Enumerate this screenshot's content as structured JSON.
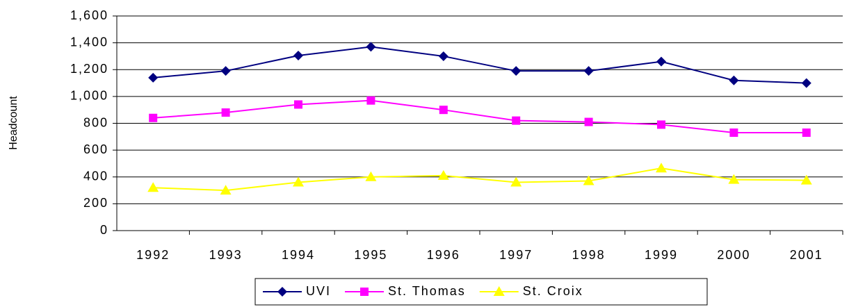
{
  "chart_data": {
    "type": "line",
    "y_label": "Headcount",
    "categories": [
      "1992",
      "1993",
      "1994",
      "1995",
      "1996",
      "1997",
      "1998",
      "1999",
      "2000",
      "2001"
    ],
    "series": [
      {
        "name": "UVI",
        "color": "#000080",
        "marker": "diamond",
        "values": [
          1140,
          1190,
          1305,
          1370,
          1300,
          1190,
          1190,
          1260,
          1120,
          1100
        ]
      },
      {
        "name": "St. Thomas",
        "color": "#ff00ff",
        "marker": "square",
        "values": [
          840,
          880,
          940,
          970,
          900,
          820,
          810,
          790,
          730,
          730
        ]
      },
      {
        "name": "St. Croix",
        "color": "#ffff00",
        "marker": "triangle",
        "values": [
          320,
          300,
          360,
          400,
          410,
          360,
          370,
          465,
          380,
          375
        ]
      }
    ],
    "ylim": [
      0,
      1600
    ],
    "yticks": [
      0,
      200,
      400,
      600,
      800,
      {
        "value": 1000,
        "label": "1,000"
      },
      {
        "value": 1200,
        "label": "1,200"
      },
      {
        "value": 1400,
        "label": "1,400"
      },
      {
        "value": 1600,
        "label": "1,600"
      }
    ],
    "grid": true,
    "legend": "bottom"
  }
}
